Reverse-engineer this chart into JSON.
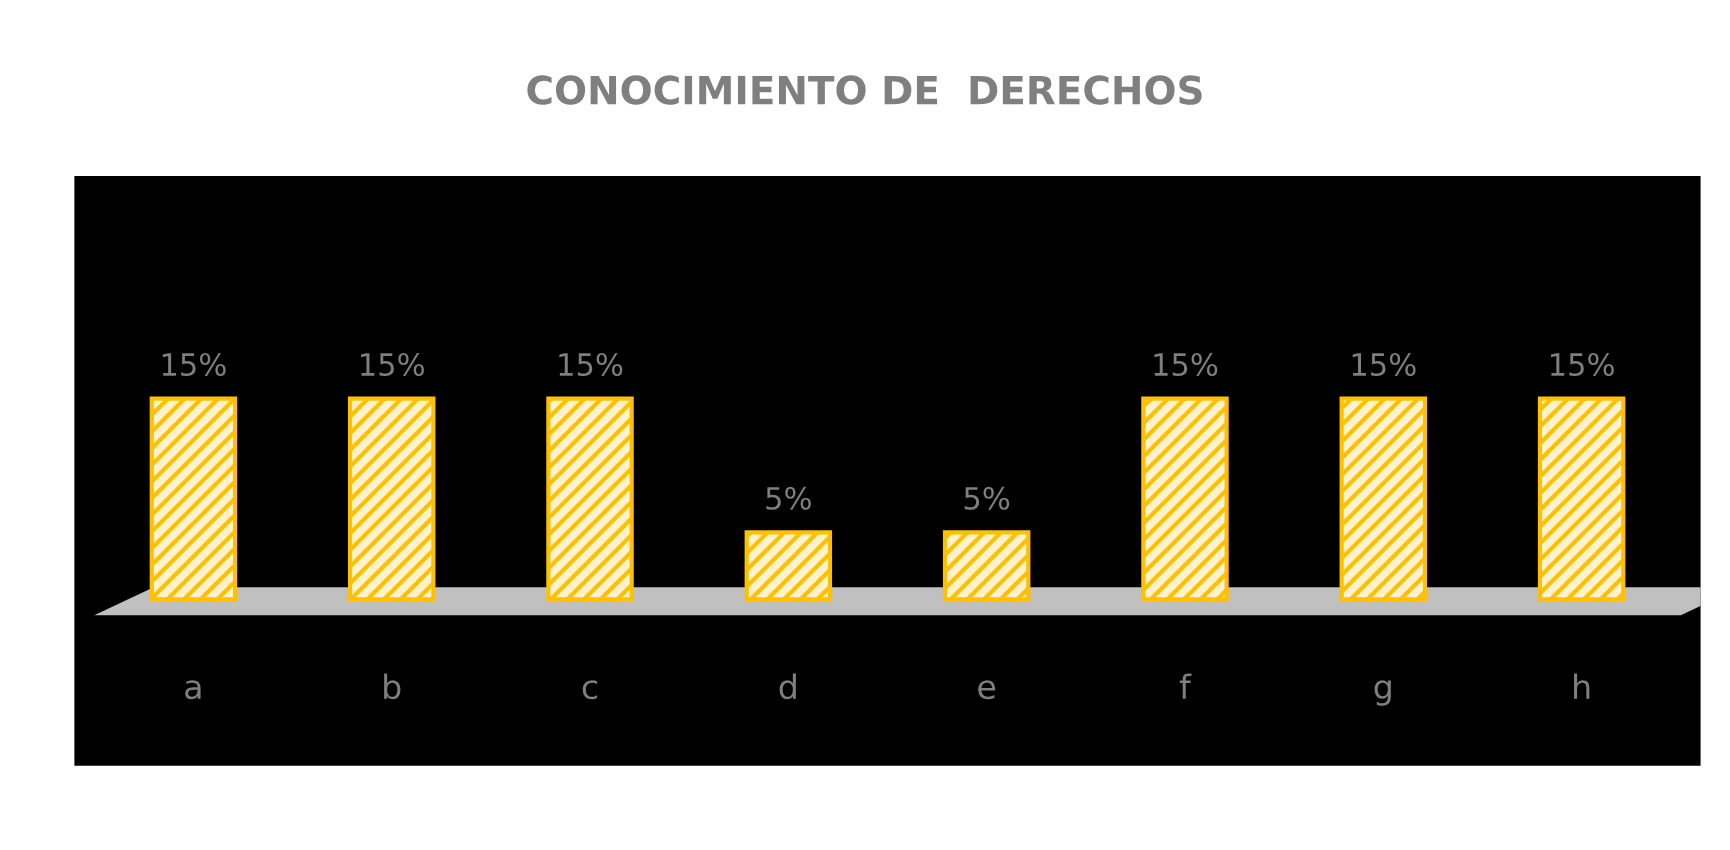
{
  "chart_data": {
    "type": "bar",
    "title": "CONOCIMIENTO DE  DERECHOS",
    "categories": [
      "a",
      "b",
      "c",
      "d",
      "e",
      "f",
      "g",
      "h"
    ],
    "values": [
      15,
      15,
      15,
      5,
      5,
      15,
      15,
      15
    ],
    "value_labels": [
      "15%",
      "15%",
      "15%",
      "5%",
      "5%",
      "15%",
      "15%",
      "15%"
    ],
    "color": "#ffc000"
  }
}
